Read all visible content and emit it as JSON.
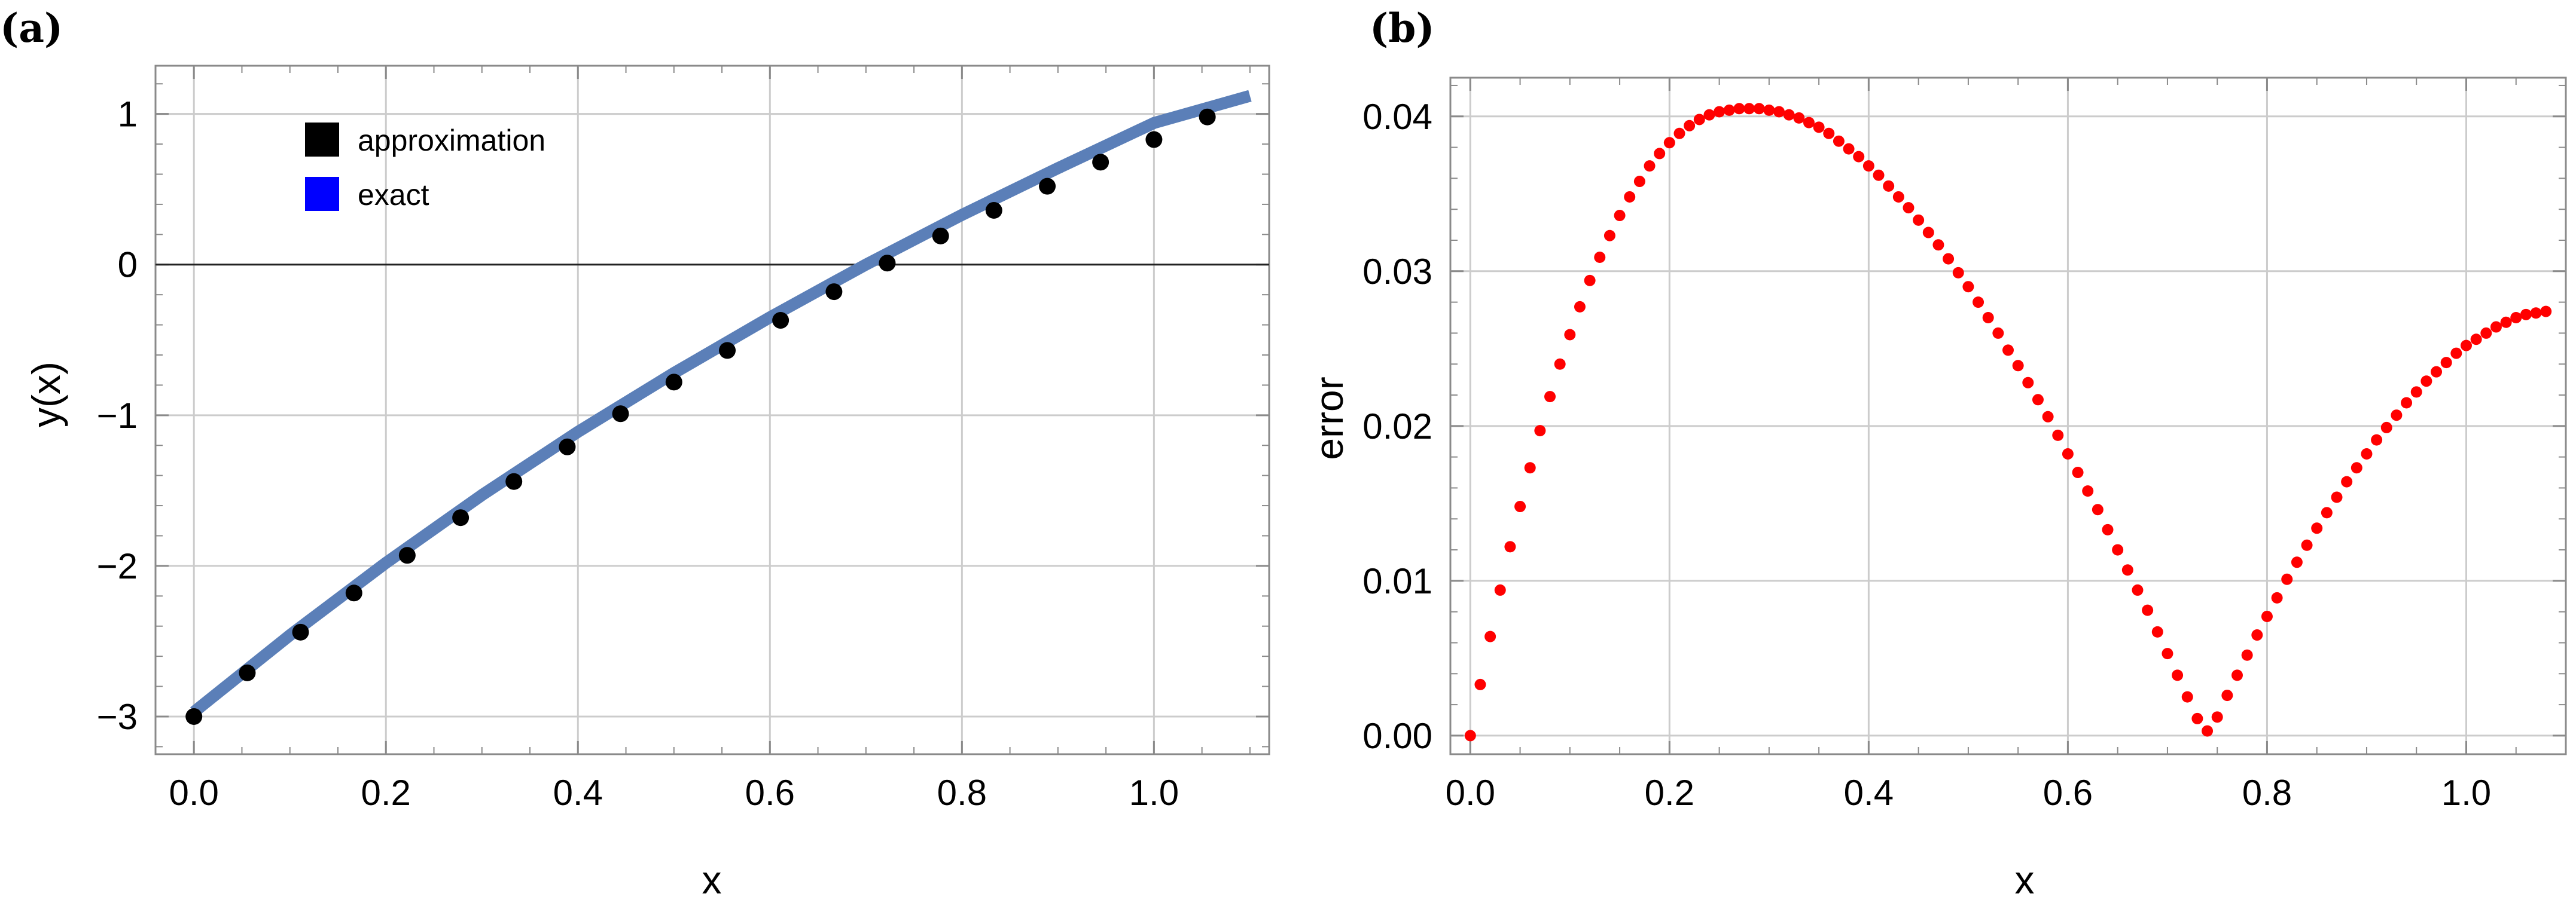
{
  "panels": [
    {
      "label": "(a)"
    },
    {
      "label": "(b)"
    }
  ],
  "chart_data": [
    {
      "type": "line",
      "panel": "(a)",
      "title": "",
      "xlabel": "x",
      "ylabel": "y(x)",
      "xlim": [
        -0.04,
        1.12
      ],
      "ylim": [
        -3.25,
        1.32
      ],
      "xticks": [
        0.0,
        0.2,
        0.4,
        0.6,
        0.8,
        1.0
      ],
      "xtick_labels": [
        "0.0",
        "0.2",
        "0.4",
        "0.6",
        "0.8",
        "1.0"
      ],
      "yticks": [
        -3,
        -2,
        -1,
        0,
        1
      ],
      "ytick_labels": [
        "−3",
        "−2",
        "−1",
        "0",
        "1"
      ],
      "grid": true,
      "legend": {
        "position": "top-left",
        "entries": [
          {
            "label": "approximation",
            "color": "#000000"
          },
          {
            "label": "exact",
            "color": "#0000ff"
          }
        ]
      },
      "series": [
        {
          "name": "exact",
          "kind": "line",
          "color": "#5b7fb8",
          "x": [
            0.0,
            0.1,
            0.2,
            0.3,
            0.4,
            0.5,
            0.6,
            0.7,
            0.8,
            0.9,
            1.0,
            1.1
          ],
          "y": [
            -2.97,
            -2.46,
            -1.98,
            -1.53,
            -1.11,
            -0.72,
            -0.35,
            0.0,
            0.33,
            0.64,
            0.94,
            1.12
          ]
        },
        {
          "name": "approximation",
          "kind": "scatter",
          "color": "#000000",
          "x": [
            0.0,
            0.0556,
            0.1111,
            0.1667,
            0.2222,
            0.2778,
            0.3333,
            0.3889,
            0.4444,
            0.5,
            0.5556,
            0.6111,
            0.6667,
            0.7222,
            0.7778,
            0.8333,
            0.8889,
            0.9444,
            1.0,
            1.0556
          ],
          "y": [
            -3.0,
            -2.71,
            -2.44,
            -2.18,
            -1.93,
            -1.68,
            -1.44,
            -1.21,
            -0.99,
            -0.78,
            -0.57,
            -0.37,
            -0.18,
            0.01,
            0.19,
            0.36,
            0.52,
            0.68,
            0.83,
            0.98
          ]
        }
      ]
    },
    {
      "type": "scatter",
      "panel": "(b)",
      "title": "",
      "xlabel": "x",
      "ylabel": "error",
      "xlim": [
        -0.02,
        1.1
      ],
      "ylim": [
        -0.0012,
        0.0425
      ],
      "xticks": [
        0.0,
        0.2,
        0.4,
        0.6,
        0.8,
        1.0
      ],
      "xtick_labels": [
        "0.0",
        "0.2",
        "0.4",
        "0.6",
        "0.8",
        "1.0"
      ],
      "yticks": [
        0.0,
        0.01,
        0.02,
        0.03,
        0.04
      ],
      "ytick_labels": [
        "0.00",
        "0.01",
        "0.02",
        "0.03",
        "0.04"
      ],
      "grid": true,
      "series": [
        {
          "name": "error",
          "color": "#ff0000",
          "x_start": 0.0,
          "x_step": 0.01,
          "y": [
            0.0,
            0.0033,
            0.0064,
            0.0094,
            0.0122,
            0.0148,
            0.0173,
            0.0197,
            0.0219,
            0.024,
            0.0259,
            0.0277,
            0.0294,
            0.0309,
            0.0323,
            0.0336,
            0.0348,
            0.0358,
            0.0368,
            0.0376,
            0.0383,
            0.0389,
            0.0394,
            0.0398,
            0.0401,
            0.0403,
            0.0404,
            0.0405,
            0.0405,
            0.0405,
            0.0404,
            0.0403,
            0.0401,
            0.0399,
            0.0396,
            0.0393,
            0.0389,
            0.0384,
            0.0379,
            0.0374,
            0.0368,
            0.0362,
            0.0355,
            0.0348,
            0.0341,
            0.0333,
            0.0325,
            0.0317,
            0.0308,
            0.0299,
            0.029,
            0.028,
            0.027,
            0.026,
            0.0249,
            0.0239,
            0.0228,
            0.0217,
            0.0206,
            0.0194,
            0.0182,
            0.017,
            0.0158,
            0.0146,
            0.0133,
            0.012,
            0.0107,
            0.0094,
            0.0081,
            0.0067,
            0.0053,
            0.0039,
            0.0025,
            0.0011,
            0.0003,
            0.0012,
            0.0026,
            0.0039,
            0.0052,
            0.0065,
            0.0077,
            0.0089,
            0.0101,
            0.0112,
            0.0123,
            0.0134,
            0.0144,
            0.0154,
            0.0164,
            0.0173,
            0.0182,
            0.0191,
            0.0199,
            0.0207,
            0.0215,
            0.0222,
            0.0229,
            0.0235,
            0.0241,
            0.0247,
            0.0252,
            0.0256,
            0.026,
            0.0264,
            0.0267,
            0.027,
            0.0272,
            0.0273,
            0.0274
          ]
        }
      ]
    }
  ]
}
